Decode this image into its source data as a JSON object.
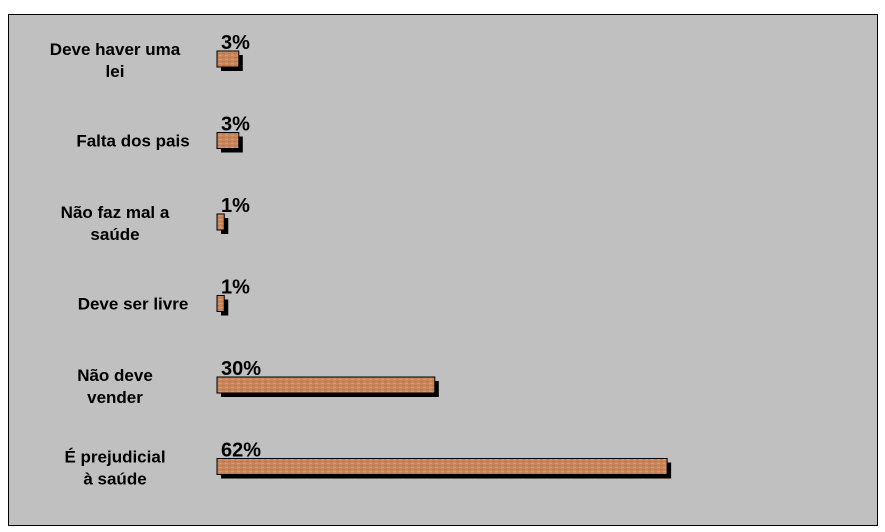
{
  "chart_data": {
    "type": "bar",
    "orientation": "horizontal",
    "title": "",
    "xlabel": "",
    "ylabel": "",
    "categories": [
      "Deve haver uma lei",
      "Falta dos pais",
      "Não faz mal a saúde",
      "Deve ser livre",
      "Não deve vender",
      "É prejudicial à saúde"
    ],
    "values": [
      3,
      3,
      1,
      1,
      30,
      62
    ],
    "value_labels": [
      "3%",
      "3%",
      "1%",
      "1%",
      "30%",
      "62%"
    ],
    "unit": "%",
    "xlim": [
      0,
      100
    ],
    "grid": false,
    "legend": "none",
    "colors": {
      "background": "#c0c0c0",
      "bar_face": "#c8865a",
      "bar_shadow": "#000000",
      "frame": "#000000"
    }
  }
}
